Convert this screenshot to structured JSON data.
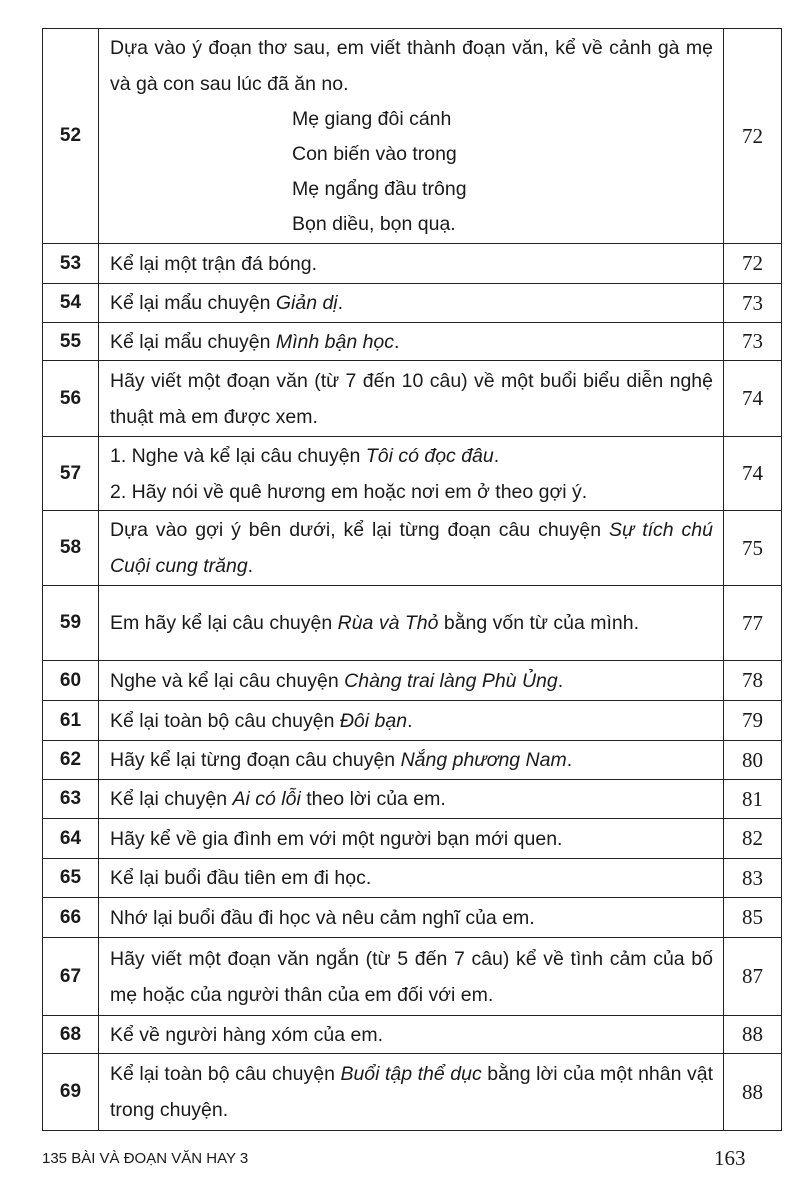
{
  "rows": [
    {
      "num": "52",
      "page": "72",
      "text": [
        {
          "t": "Dựa vào ý đoạn thơ sau, em viết thành đoạn văn, kể về cảnh gà mẹ và gà con sau lúc đã ăn no."
        }
      ],
      "poem": [
        "Mẹ giang đôi cánh",
        "Con biến vào trong",
        "Mẹ ngẩng đầu trông",
        "Bọn diều, bọn quạ."
      ]
    },
    {
      "num": "53",
      "page": "72",
      "text": [
        {
          "t": "Kể lại một trận đá bóng."
        }
      ]
    },
    {
      "num": "54",
      "page": "73",
      "text": [
        {
          "t": "Kể lại mẩu chuyện "
        },
        {
          "t": "Giản dị",
          "i": true
        },
        {
          "t": "."
        }
      ]
    },
    {
      "num": "55",
      "page": "73",
      "text": [
        {
          "t": "Kể lại mẩu chuyện "
        },
        {
          "t": "Mình bận học",
          "i": true
        },
        {
          "t": "."
        }
      ]
    },
    {
      "num": "56",
      "page": "74",
      "text": [
        {
          "t": "Hãy viết một đoạn văn (từ 7 đến 10 câu) về một buổi biểu diễn nghệ thuật mà em được xem."
        }
      ]
    },
    {
      "num": "57",
      "page": "74",
      "lines": [
        [
          {
            "t": "1. Nghe và kể lại câu chuyện "
          },
          {
            "t": "Tôi có đọc đâu",
            "i": true
          },
          {
            "t": "."
          }
        ],
        [
          {
            "t": "2. Hãy nói về quê hương em hoặc nơi em ở theo gợi ý."
          }
        ]
      ]
    },
    {
      "num": "58",
      "page": "75",
      "text": [
        {
          "t": "Dựa vào gợi ý bên dưới, kể lại từng đoạn câu chuyện "
        },
        {
          "t": "Sự tích chú Cuội cung trăng",
          "i": true
        },
        {
          "t": "."
        }
      ]
    },
    {
      "num": "59",
      "page": "77",
      "text": [
        {
          "t": "Em hãy kể lại câu chuyện "
        },
        {
          "t": "Rùa và Thỏ",
          "i": true
        },
        {
          "t": " bằng vốn từ của mình."
        }
      ]
    },
    {
      "num": "60",
      "page": "78",
      "text": [
        {
          "t": "Nghe và kể lại câu chuyện "
        },
        {
          "t": "Chàng trai làng Phù Ủng",
          "i": true
        },
        {
          "t": "."
        }
      ]
    },
    {
      "num": "61",
      "page": "79",
      "text": [
        {
          "t": "Kể lại toàn bộ câu chuyện "
        },
        {
          "t": "Đôi bạn",
          "i": true
        },
        {
          "t": "."
        }
      ]
    },
    {
      "num": "62",
      "page": "80",
      "text": [
        {
          "t": "Hãy kể lại từng đoạn câu chuyện "
        },
        {
          "t": "Nắng phương Nam",
          "i": true
        },
        {
          "t": "."
        }
      ]
    },
    {
      "num": "63",
      "page": "81",
      "text": [
        {
          "t": "Kể lại chuyện "
        },
        {
          "t": "Ai có lỗi",
          "i": true
        },
        {
          "t": " theo lời của em."
        }
      ]
    },
    {
      "num": "64",
      "page": "82",
      "text": [
        {
          "t": "Hãy kể về gia đình em với một người bạn mới quen."
        }
      ]
    },
    {
      "num": "65",
      "page": "83",
      "text": [
        {
          "t": "Kể lại buổi đầu tiên em đi học."
        }
      ]
    },
    {
      "num": "66",
      "page": "85",
      "text": [
        {
          "t": "Nhớ lại buổi đầu đi học và nêu cảm nghĩ của em."
        }
      ]
    },
    {
      "num": "67",
      "page": "87",
      "text": [
        {
          "t": "Hãy viết một đoạn văn ngắn (từ 5 đến 7 câu) kể về tình cảm của bố mẹ hoặc của người thân của em đối với em."
        }
      ]
    },
    {
      "num": "68",
      "page": "88",
      "text": [
        {
          "t": "Kể về người hàng xóm của em."
        }
      ]
    },
    {
      "num": "69",
      "page": "88",
      "text": [
        {
          "t": "Kể lại toàn bộ câu chuyện "
        },
        {
          "t": "Buổi tập thể dục",
          "i": true
        },
        {
          "t": " bằng lời của một nhân vật trong chuyện."
        }
      ]
    }
  ],
  "footer": {
    "book_title": "135 BÀI VÀ ĐOẠN VĂN HAY 3",
    "page_number": "163"
  }
}
